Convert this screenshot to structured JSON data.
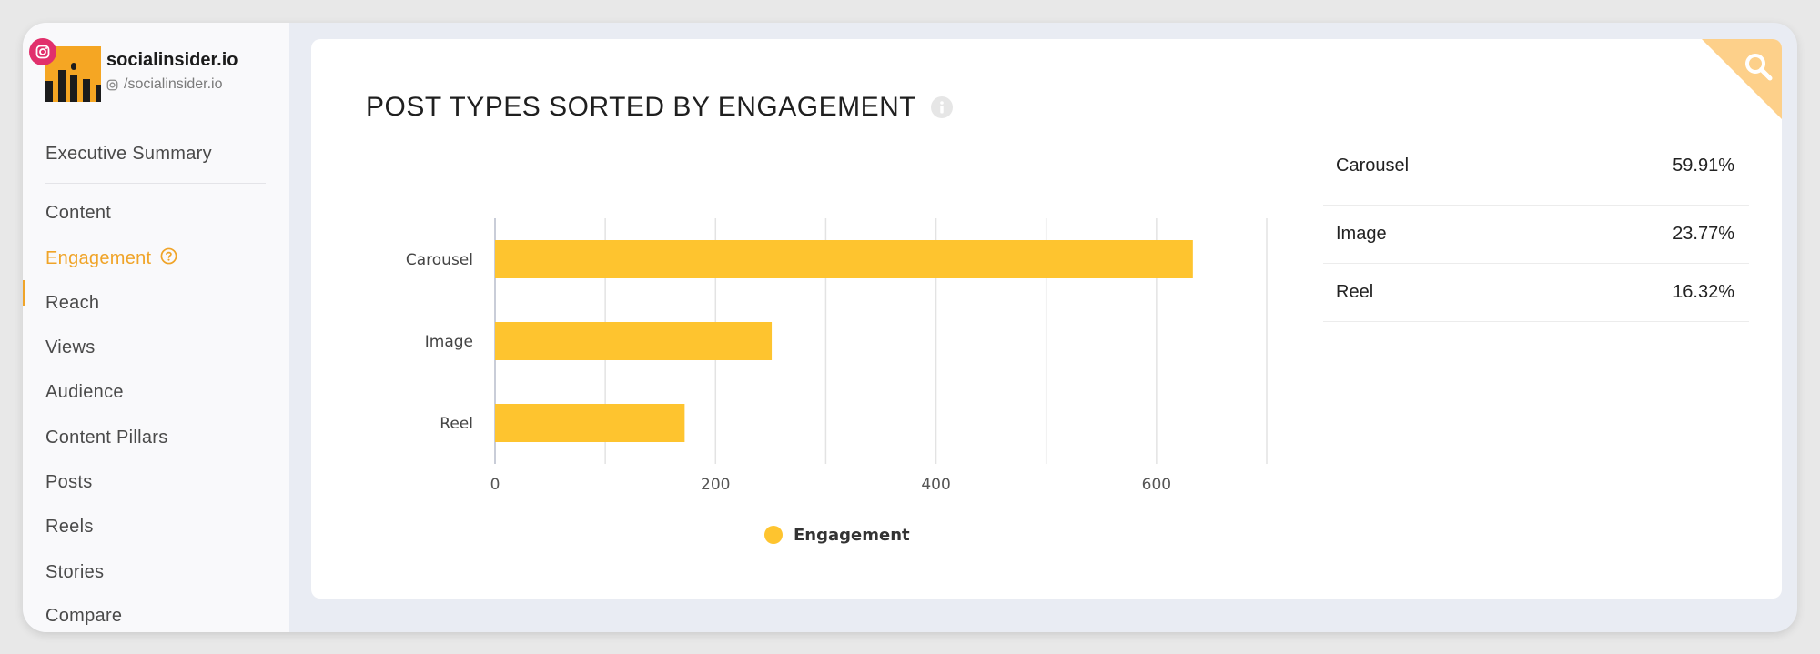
{
  "brand": {
    "name": "socialinsider.io",
    "handle": "/socialinsider.io",
    "avatar_color": "#f5a623",
    "badge_color": "#e1306c",
    "badge_icon": "instagram-icon"
  },
  "sidebar": {
    "items": [
      {
        "label": "Executive Summary",
        "active": false
      },
      {
        "label": "Content",
        "active": false
      },
      {
        "label": "Engagement",
        "active": true,
        "icon": "question-circle-icon"
      },
      {
        "label": "Reach",
        "active": false
      },
      {
        "label": "Views",
        "active": false
      },
      {
        "label": "Audience",
        "active": false
      },
      {
        "label": "Content Pillars",
        "active": false
      },
      {
        "label": "Posts",
        "active": false
      },
      {
        "label": "Reels",
        "active": false
      },
      {
        "label": "Stories",
        "active": false
      },
      {
        "label": "Compare",
        "active": false
      }
    ],
    "accent_color": "#f0a428"
  },
  "card": {
    "title": "POST TYPES SORTED BY ENGAGEMENT",
    "info_icon": "info-icon",
    "corner_icon": "search-icon",
    "corner_color": "#fdd08a"
  },
  "chart_data": {
    "type": "bar",
    "orientation": "horizontal",
    "categories": [
      "Carousel",
      "Image",
      "Reel"
    ],
    "series": [
      {
        "name": "Engagement",
        "values": [
          633,
          251,
          172
        ],
        "color": "#fec42f"
      }
    ],
    "xticks": [
      "0",
      "200",
      "400",
      "600"
    ],
    "xlim": [
      0,
      700
    ],
    "grid": true,
    "legend": "bottom"
  },
  "breakdown": [
    {
      "label": "Carousel",
      "value": "59.91%"
    },
    {
      "label": "Image",
      "value": "23.77%"
    },
    {
      "label": "Reel",
      "value": "16.32%"
    }
  ]
}
